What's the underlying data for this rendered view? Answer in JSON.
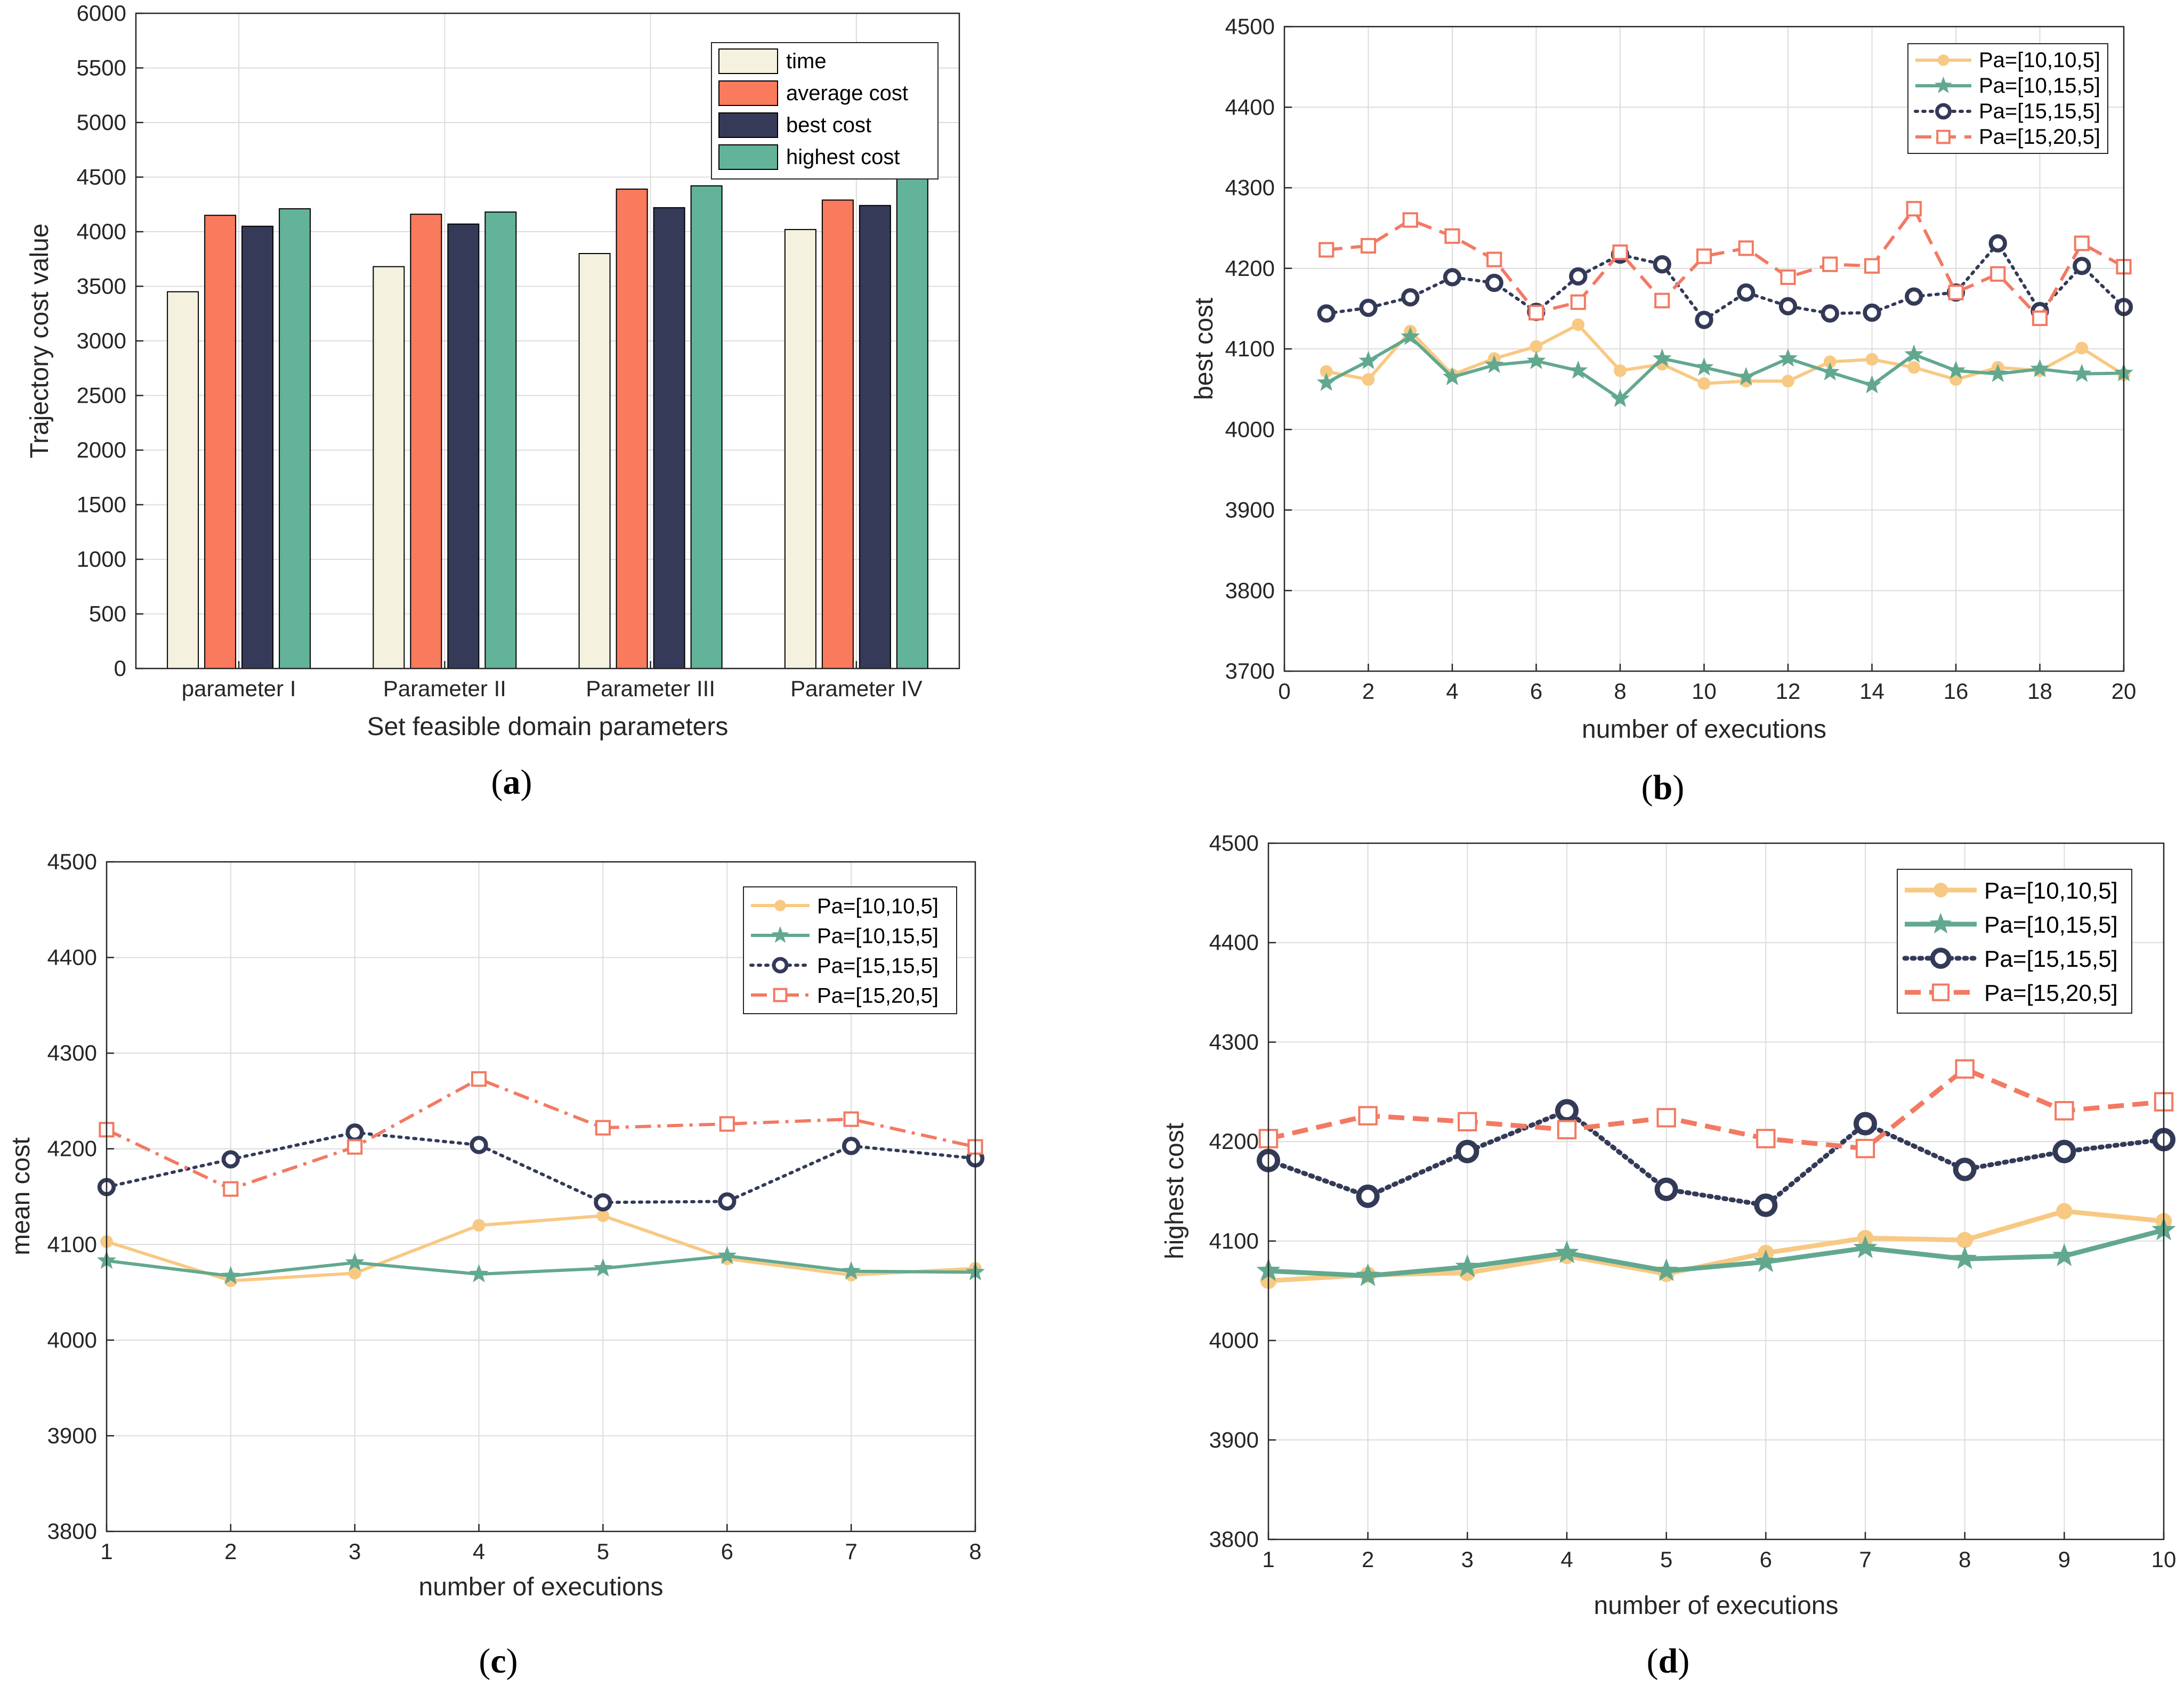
{
  "colors": {
    "time": "#F5F1DF",
    "average_cost": "#F97A5C",
    "best_cost": "#363A59",
    "highest_cost": "#63B39A",
    "series_10_10_5": "#F8C983",
    "series_10_15_5": "#62A88F",
    "series_15_15_5": "#333A57",
    "series_15_20_5": "#F27A62",
    "grid": "#DCDCDC",
    "axis": "#262626"
  },
  "panels": [
    "a",
    "b",
    "c",
    "d"
  ],
  "chart_data": [
    {
      "id": "a",
      "type": "bar",
      "title": "",
      "xlabel": "Set feasible domain parameters",
      "ylabel": "Trajectory cost value",
      "ylim": [
        0,
        6000
      ],
      "yticks": [
        0,
        500,
        1000,
        1500,
        2000,
        2500,
        3000,
        3500,
        4000,
        4500,
        5000,
        5500,
        6000
      ],
      "grid": true,
      "legend_position": "top-right",
      "categories": [
        "parameter I",
        "Parameter II",
        "Parameter III",
        "Parameter IV"
      ],
      "series": [
        {
          "name": "time",
          "color_key": "time",
          "values": [
            3450,
            3680,
            3800,
            4020
          ]
        },
        {
          "name": "average cost",
          "color_key": "average_cost",
          "values": [
            4150,
            4160,
            4390,
            4290
          ]
        },
        {
          "name": "best cost",
          "color_key": "best_cost",
          "values": [
            4050,
            4070,
            4220,
            4240
          ]
        },
        {
          "name": "highest cost",
          "color_key": "highest_cost",
          "values": [
            4210,
            4180,
            4420,
            4620
          ]
        }
      ]
    },
    {
      "id": "b",
      "type": "line",
      "title": "",
      "xlabel": "number of executions",
      "ylabel": "best cost",
      "xlim": [
        0,
        20
      ],
      "ylim": [
        3700,
        4500
      ],
      "xticks": [
        0,
        2,
        4,
        6,
        8,
        10,
        12,
        14,
        16,
        18,
        20
      ],
      "yticks": [
        3700,
        3800,
        3900,
        4000,
        4100,
        4200,
        4300,
        4400,
        4500
      ],
      "grid": true,
      "legend_position": "top-right",
      "x": [
        1,
        2,
        3,
        4,
        5,
        6,
        7,
        8,
        9,
        10,
        11,
        12,
        13,
        14,
        15,
        16,
        17,
        18,
        19,
        20
      ],
      "series": [
        {
          "name": "Pa=[10,10,5]",
          "color_key": "series_10_10_5",
          "marker": "dot",
          "dash": "solid",
          "values": [
            4072,
            4062,
            4122,
            4068,
            4088,
            4103,
            4130,
            4073,
            4081,
            4057,
            4060,
            4060,
            4084,
            4087,
            4077,
            4062,
            4077,
            4073,
            4101,
            4068
          ]
        },
        {
          "name": "Pa=[10,15,5]",
          "color_key": "series_10_15_5",
          "marker": "star",
          "dash": "solid",
          "values": [
            4058,
            4085,
            4115,
            4065,
            4080,
            4085,
            4073,
            4038,
            4088,
            4077,
            4065,
            4088,
            4071,
            4055,
            4093,
            4073,
            4069,
            4075,
            4069,
            4070
          ]
        },
        {
          "name": "Pa=[15,15,5]",
          "color_key": "series_15_15_5",
          "marker": "ring",
          "dash": "dotted",
          "values": [
            4144,
            4151,
            4164,
            4189,
            4182,
            4146,
            4190,
            4217,
            4205,
            4136,
            4170,
            4153,
            4144,
            4145,
            4165,
            4170,
            4231,
            4147,
            4203,
            4152
          ]
        },
        {
          "name": "Pa=[15,20,5]",
          "color_key": "series_15_20_5",
          "marker": "square",
          "dash": "dashed",
          "values": [
            4223,
            4228,
            4260,
            4240,
            4211,
            4145,
            4158,
            4220,
            4160,
            4215,
            4225,
            4189,
            4205,
            4203,
            4274,
            4170,
            4193,
            4138,
            4231,
            4202
          ]
        }
      ]
    },
    {
      "id": "c",
      "type": "line",
      "title": "",
      "xlabel": "number of executions",
      "ylabel": "mean cost",
      "xlim": [
        1,
        8
      ],
      "ylim": [
        3800,
        4500
      ],
      "xticks": [
        1,
        2,
        3,
        4,
        5,
        6,
        7,
        8
      ],
      "yticks": [
        3800,
        3900,
        4000,
        4100,
        4200,
        4300,
        4400,
        4500
      ],
      "grid": true,
      "legend_position": "top-right",
      "x": [
        1,
        2,
        3,
        4,
        5,
        6,
        7,
        8
      ],
      "series": [
        {
          "name": "Pa=[10,10,5]",
          "color_key": "series_10_10_5",
          "marker": "dot",
          "dash": "solid",
          "values": [
            4103,
            4062,
            4070,
            4120,
            4130,
            4085,
            4068,
            4075
          ]
        },
        {
          "name": "Pa=[10,15,5]",
          "color_key": "series_10_15_5",
          "marker": "star",
          "dash": "solid",
          "values": [
            4083,
            4067,
            4081,
            4069,
            4075,
            4088,
            4072,
            4071
          ]
        },
        {
          "name": "Pa=[15,15,5]",
          "color_key": "series_15_15_5",
          "marker": "ring",
          "dash": "dotted",
          "values": [
            4160,
            4189,
            4217,
            4204,
            4144,
            4145,
            4203,
            4190
          ]
        },
        {
          "name": "Pa=[15,20,5]",
          "color_key": "series_15_20_5",
          "marker": "square",
          "dash": "dashdot",
          "values": [
            4220,
            4158,
            4202,
            4273,
            4222,
            4226,
            4231,
            4202
          ]
        }
      ]
    },
    {
      "id": "d",
      "type": "line",
      "title": "",
      "xlabel": "number of executions",
      "ylabel": "highest cost",
      "xlim": [
        1,
        10
      ],
      "ylim": [
        3800,
        4500
      ],
      "xticks": [
        1,
        2,
        3,
        4,
        5,
        6,
        7,
        8,
        9,
        10
      ],
      "yticks": [
        3800,
        3900,
        4000,
        4100,
        4200,
        4300,
        4400,
        4500
      ],
      "grid": true,
      "legend_position": "top-right",
      "x": [
        1,
        2,
        3,
        4,
        5,
        6,
        7,
        8,
        9,
        10
      ],
      "series": [
        {
          "name": "Pa=[10,10,5]",
          "color_key": "series_10_10_5",
          "marker": "dot",
          "dash": "solid",
          "values": [
            4060,
            4066,
            4068,
            4085,
            4067,
            4088,
            4103,
            4101,
            4130,
            4120
          ]
        },
        {
          "name": "Pa=[10,15,5]",
          "color_key": "series_10_15_5",
          "marker": "star",
          "dash": "solid",
          "values": [
            4070,
            4065,
            4074,
            4088,
            4070,
            4079,
            4093,
            4082,
            4085,
            4111
          ]
        },
        {
          "name": "Pa=[15,15,5]",
          "color_key": "series_15_15_5",
          "marker": "ring",
          "dash": "dotted",
          "values": [
            4181,
            4145,
            4190,
            4231,
            4152,
            4136,
            4218,
            4172,
            4190,
            4202
          ]
        },
        {
          "name": "Pa=[15,20,5]",
          "color_key": "series_15_20_5",
          "marker": "square",
          "dash": "dashed",
          "values": [
            4203,
            4226,
            4220,
            4212,
            4224,
            4203,
            4193,
            4273,
            4231,
            4240
          ]
        }
      ]
    }
  ]
}
